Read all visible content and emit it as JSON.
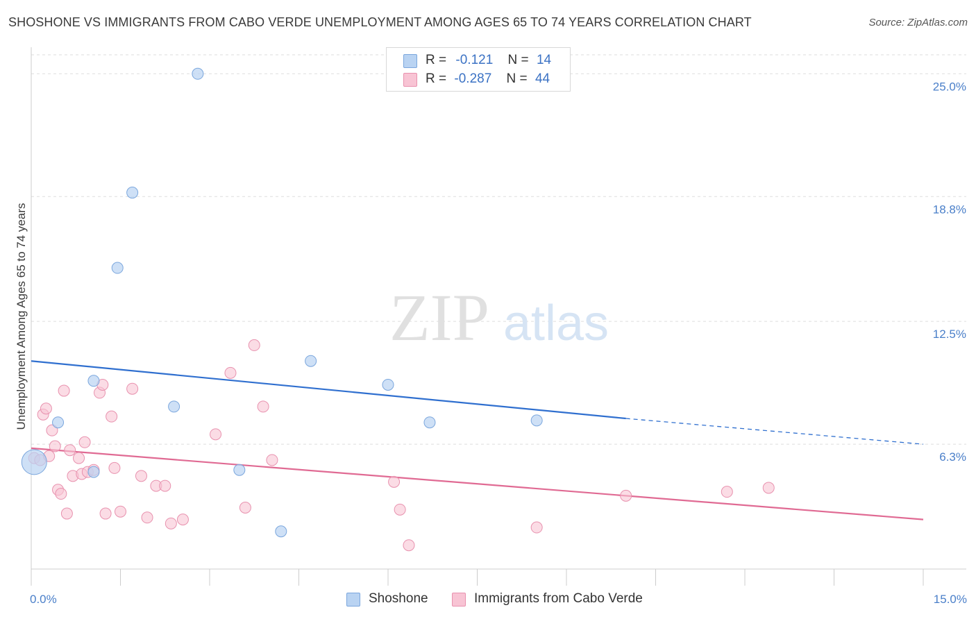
{
  "title": "SHOSHONE VS IMMIGRANTS FROM CABO VERDE UNEMPLOYMENT AMONG AGES 65 TO 74 YEARS CORRELATION CHART",
  "source": "Source: ZipAtlas.com",
  "watermark": {
    "zip": "ZIP",
    "atlas": "atlas"
  },
  "legend": {
    "series1": {
      "r_label": "R =",
      "r_value": "-0.121",
      "n_label": "N =",
      "n_value": "14"
    },
    "series2": {
      "r_label": "R =",
      "r_value": "-0.287",
      "n_label": "N =",
      "n_value": "44"
    }
  },
  "colors": {
    "shoshone_fill": "#b9d3f2",
    "shoshone_stroke": "#7aa6dd",
    "shoshone_line": "#2f6fcf",
    "cabo_fill": "#f8c4d4",
    "cabo_stroke": "#e891ae",
    "cabo_line": "#e06a93",
    "grid": "#dddddd",
    "tick_label": "#4a7fc9"
  },
  "chart_data": {
    "type": "scatter",
    "title": "SHOSHONE VS IMMIGRANTS FROM CABO VERDE UNEMPLOYMENT AMONG AGES 65 TO 74 YEARS CORRELATION CHART",
    "xlabel": "",
    "ylabel": "Unemployment Among Ages 65 to 74 years",
    "xlim": [
      0,
      15
    ],
    "ylim": [
      0,
      26.2
    ],
    "x_tick_labels": [
      "0.0%",
      "15.0%"
    ],
    "y_ticks": [
      6.3,
      12.5,
      18.8,
      25.0
    ],
    "y_tick_labels": [
      "6.3%",
      "12.5%",
      "18.8%",
      "25.0%"
    ],
    "grid": true,
    "legend_position": "top-center",
    "series": [
      {
        "name": "Shoshone",
        "points": [
          [
            0.05,
            5.4
          ],
          [
            0.45,
            7.4
          ],
          [
            1.05,
            9.5
          ],
          [
            1.05,
            4.9
          ],
          [
            1.45,
            15.2
          ],
          [
            1.7,
            19.0
          ],
          [
            2.4,
            8.2
          ],
          [
            2.8,
            25.0
          ],
          [
            3.5,
            5.0
          ],
          [
            4.2,
            1.9
          ],
          [
            4.7,
            10.5
          ],
          [
            6.0,
            9.3
          ],
          [
            6.7,
            7.4
          ],
          [
            8.5,
            7.5
          ]
        ],
        "trend": {
          "x0": 0,
          "y0": 10.5,
          "x1": 10.0,
          "y1": 7.6,
          "x_dash_end": 15.0,
          "y_dash_end": 6.3
        }
      },
      {
        "name": "Immigrants from Cabo Verde",
        "points": [
          [
            0.05,
            5.6
          ],
          [
            0.15,
            5.5
          ],
          [
            0.2,
            7.8
          ],
          [
            0.25,
            8.1
          ],
          [
            0.3,
            5.7
          ],
          [
            0.35,
            7.0
          ],
          [
            0.4,
            6.2
          ],
          [
            0.45,
            4.0
          ],
          [
            0.5,
            3.8
          ],
          [
            0.55,
            9.0
          ],
          [
            0.6,
            2.8
          ],
          [
            0.65,
            6.0
          ],
          [
            0.7,
            4.7
          ],
          [
            0.8,
            5.6
          ],
          [
            0.85,
            4.8
          ],
          [
            0.9,
            6.4
          ],
          [
            0.95,
            4.9
          ],
          [
            1.05,
            5.0
          ],
          [
            1.15,
            8.9
          ],
          [
            1.2,
            9.3
          ],
          [
            1.25,
            2.8
          ],
          [
            1.35,
            7.7
          ],
          [
            1.4,
            5.1
          ],
          [
            1.5,
            2.9
          ],
          [
            1.7,
            9.1
          ],
          [
            1.85,
            4.7
          ],
          [
            1.95,
            2.6
          ],
          [
            2.1,
            4.2
          ],
          [
            2.25,
            4.2
          ],
          [
            2.35,
            2.3
          ],
          [
            2.55,
            2.5
          ],
          [
            3.1,
            6.8
          ],
          [
            3.35,
            9.9
          ],
          [
            3.6,
            3.1
          ],
          [
            3.75,
            11.3
          ],
          [
            3.9,
            8.2
          ],
          [
            4.05,
            5.5
          ],
          [
            6.1,
            4.4
          ],
          [
            6.2,
            3.0
          ],
          [
            6.35,
            1.2
          ],
          [
            8.5,
            2.1
          ],
          [
            10.0,
            3.7
          ],
          [
            11.7,
            3.9
          ],
          [
            12.4,
            4.1
          ]
        ],
        "trend": {
          "x0": 0,
          "y0": 6.1,
          "x1": 15.0,
          "y1": 2.5
        }
      }
    ]
  }
}
